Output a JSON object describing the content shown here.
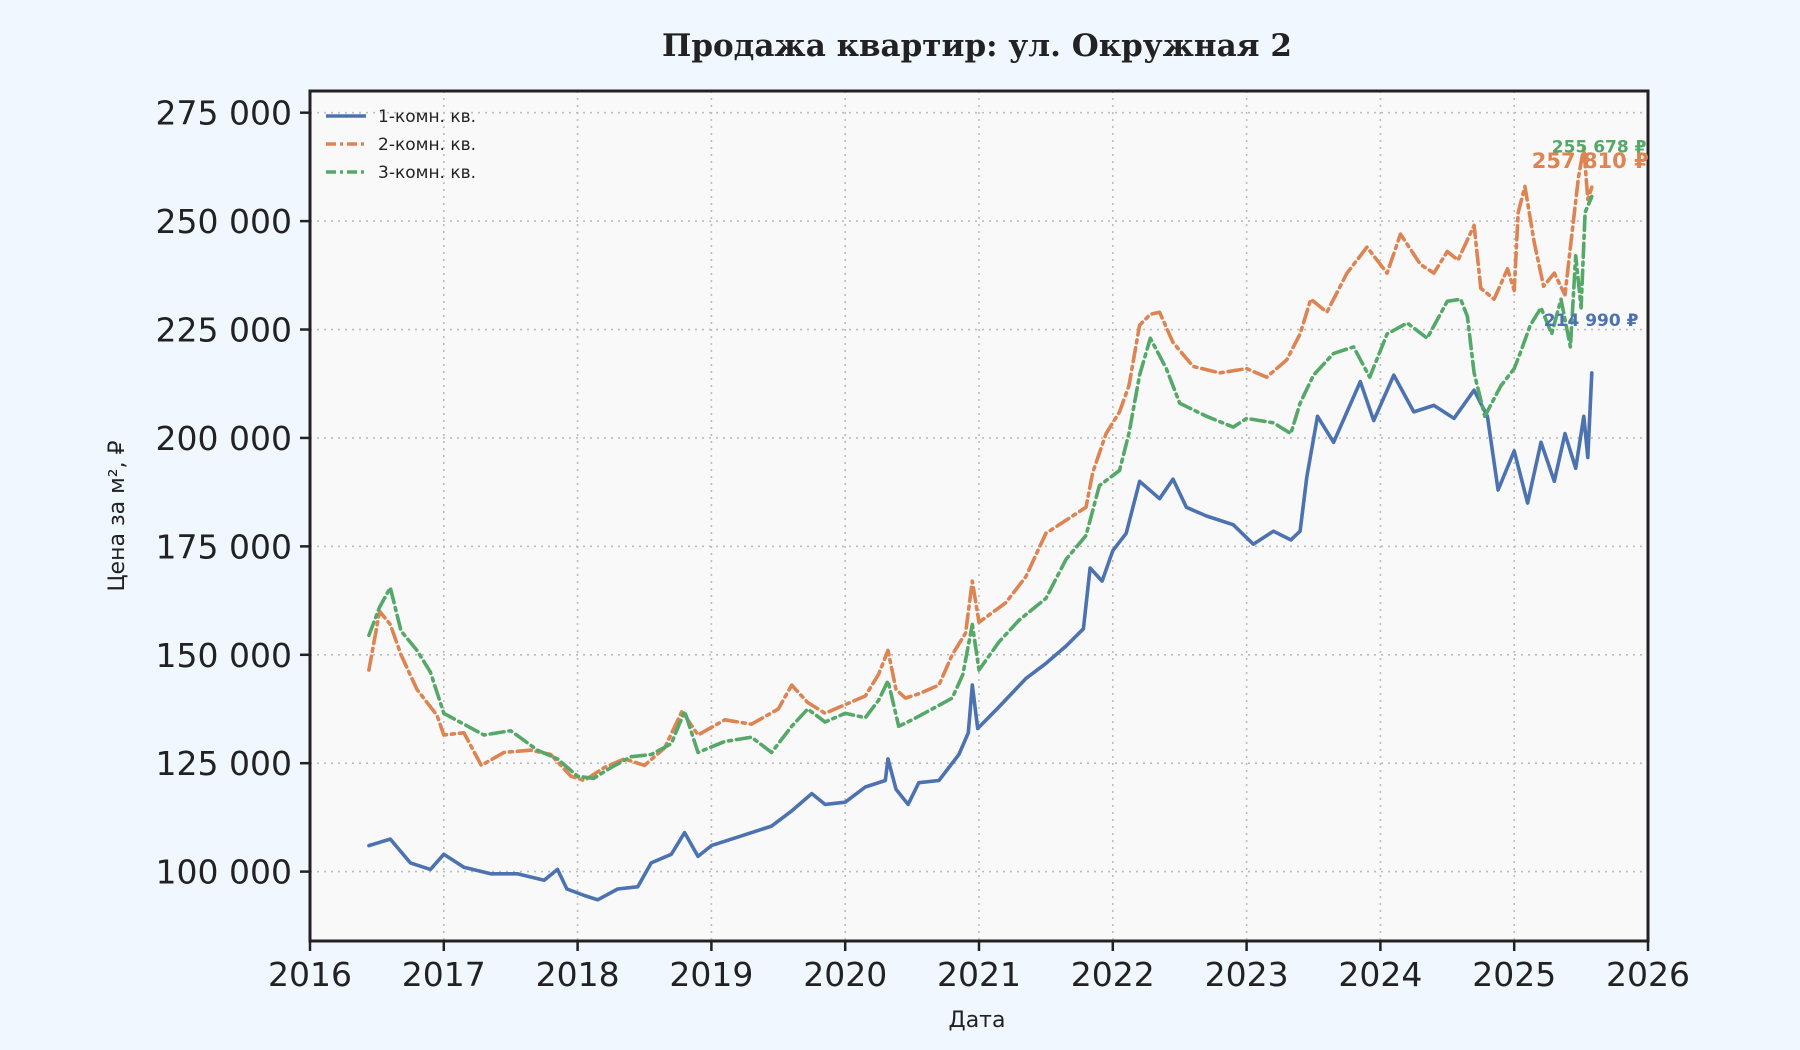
{
  "chart_data": {
    "type": "line",
    "title": "Продажа квартир: ул. Окружная 2",
    "xlabel": "Дата",
    "ylabel": "Цена за м², ₽",
    "xlim": [
      2016,
      2026
    ],
    "ylim": [
      84000,
      280000
    ],
    "x_ticks": [
      2016,
      2017,
      2018,
      2019,
      2020,
      2021,
      2022,
      2023,
      2024,
      2025,
      2026
    ],
    "y_ticks": [
      100000,
      125000,
      150000,
      175000,
      200000,
      225000,
      250000,
      275000
    ],
    "y_tick_labels": [
      "100 000",
      "125 000",
      "150 000",
      "175 000",
      "200 000",
      "225 000",
      "250 000",
      "275 000"
    ],
    "grid": true,
    "legend": "top-left",
    "series": [
      {
        "name": "1-комн. кв.",
        "color": "#4c72b0",
        "style": "solid",
        "end_label": "214 990 ₽",
        "points": [
          [
            2016.44,
            106000
          ],
          [
            2016.6,
            107500
          ],
          [
            2016.75,
            102000
          ],
          [
            2016.9,
            100500
          ],
          [
            2017.0,
            104000
          ],
          [
            2017.15,
            101000
          ],
          [
            2017.35,
            99500
          ],
          [
            2017.55,
            99500
          ],
          [
            2017.75,
            98000
          ],
          [
            2017.85,
            100500
          ],
          [
            2017.92,
            96000
          ],
          [
            2018.05,
            94500
          ],
          [
            2018.15,
            93500
          ],
          [
            2018.3,
            96000
          ],
          [
            2018.45,
            96500
          ],
          [
            2018.55,
            102000
          ],
          [
            2018.7,
            104000
          ],
          [
            2018.8,
            109000
          ],
          [
            2018.9,
            103500
          ],
          [
            2019.0,
            106000
          ],
          [
            2019.2,
            108000
          ],
          [
            2019.45,
            110500
          ],
          [
            2019.6,
            114000
          ],
          [
            2019.75,
            118000
          ],
          [
            2019.85,
            115500
          ],
          [
            2020.0,
            116000
          ],
          [
            2020.15,
            119500
          ],
          [
            2020.3,
            121000
          ],
          [
            2020.32,
            126000
          ],
          [
            2020.38,
            119000
          ],
          [
            2020.47,
            115500
          ],
          [
            2020.55,
            120500
          ],
          [
            2020.7,
            121000
          ],
          [
            2020.85,
            127000
          ],
          [
            2020.92,
            132000
          ],
          [
            2020.95,
            143000
          ],
          [
            2020.99,
            133000
          ],
          [
            2021.15,
            138000
          ],
          [
            2021.35,
            144500
          ],
          [
            2021.5,
            148000
          ],
          [
            2021.65,
            152000
          ],
          [
            2021.78,
            156000
          ],
          [
            2021.83,
            170000
          ],
          [
            2021.92,
            167000
          ],
          [
            2022.0,
            174000
          ],
          [
            2022.1,
            178000
          ],
          [
            2022.2,
            190000
          ],
          [
            2022.35,
            186000
          ],
          [
            2022.45,
            190500
          ],
          [
            2022.55,
            184000
          ],
          [
            2022.7,
            182000
          ],
          [
            2022.9,
            180000
          ],
          [
            2023.05,
            175500
          ],
          [
            2023.2,
            178500
          ],
          [
            2023.33,
            176500
          ],
          [
            2023.4,
            178500
          ],
          [
            2023.45,
            191000
          ],
          [
            2023.53,
            205000
          ],
          [
            2023.65,
            199000
          ],
          [
            2023.75,
            206000
          ],
          [
            2023.85,
            213000
          ],
          [
            2023.95,
            204000
          ],
          [
            2024.1,
            214500
          ],
          [
            2024.25,
            206000
          ],
          [
            2024.4,
            207500
          ],
          [
            2024.55,
            204500
          ],
          [
            2024.7,
            211000
          ],
          [
            2024.8,
            205000
          ],
          [
            2024.88,
            188000
          ],
          [
            2025.0,
            197000
          ],
          [
            2025.1,
            185000
          ],
          [
            2025.2,
            199000
          ],
          [
            2025.3,
            190000
          ],
          [
            2025.38,
            201000
          ],
          [
            2025.46,
            193000
          ],
          [
            2025.52,
            205000
          ],
          [
            2025.55,
            195500
          ],
          [
            2025.58,
            214990
          ]
        ]
      },
      {
        "name": "2-комн. кв.",
        "color": "#dd8452",
        "style": "dashdot",
        "end_label": "257 810 ₽",
        "points": [
          [
            2016.44,
            146500
          ],
          [
            2016.52,
            160000
          ],
          [
            2016.6,
            157000
          ],
          [
            2016.68,
            150000
          ],
          [
            2016.8,
            142000
          ],
          [
            2016.95,
            136000
          ],
          [
            2017.0,
            131500
          ],
          [
            2017.15,
            132000
          ],
          [
            2017.28,
            124500
          ],
          [
            2017.45,
            127500
          ],
          [
            2017.65,
            128000
          ],
          [
            2017.8,
            127000
          ],
          [
            2017.95,
            122000
          ],
          [
            2018.05,
            121000
          ],
          [
            2018.2,
            124000
          ],
          [
            2018.35,
            126000
          ],
          [
            2018.5,
            124500
          ],
          [
            2018.65,
            128500
          ],
          [
            2018.78,
            137000
          ],
          [
            2018.9,
            131500
          ],
          [
            2019.1,
            135000
          ],
          [
            2019.3,
            134000
          ],
          [
            2019.5,
            137500
          ],
          [
            2019.6,
            143000
          ],
          [
            2019.72,
            139000
          ],
          [
            2019.85,
            136500
          ],
          [
            2020.0,
            138500
          ],
          [
            2020.15,
            140500
          ],
          [
            2020.25,
            145500
          ],
          [
            2020.32,
            151000
          ],
          [
            2020.38,
            142000
          ],
          [
            2020.45,
            140000
          ],
          [
            2020.55,
            141000
          ],
          [
            2020.7,
            143000
          ],
          [
            2020.8,
            150000
          ],
          [
            2020.9,
            155000
          ],
          [
            2020.95,
            167000
          ],
          [
            2021.0,
            157500
          ],
          [
            2021.2,
            162000
          ],
          [
            2021.35,
            168000
          ],
          [
            2021.5,
            178000
          ],
          [
            2021.65,
            181000
          ],
          [
            2021.8,
            184000
          ],
          [
            2021.85,
            192000
          ],
          [
            2021.95,
            201000
          ],
          [
            2022.05,
            206000
          ],
          [
            2022.12,
            212000
          ],
          [
            2022.2,
            226000
          ],
          [
            2022.28,
            228500
          ],
          [
            2022.35,
            229000
          ],
          [
            2022.45,
            222000
          ],
          [
            2022.6,
            216500
          ],
          [
            2022.8,
            215000
          ],
          [
            2023.0,
            216000
          ],
          [
            2023.15,
            214000
          ],
          [
            2023.3,
            218000
          ],
          [
            2023.4,
            224000
          ],
          [
            2023.48,
            232000
          ],
          [
            2023.6,
            229000
          ],
          [
            2023.75,
            238000
          ],
          [
            2023.9,
            244000
          ],
          [
            2024.05,
            238000
          ],
          [
            2024.15,
            247000
          ],
          [
            2024.3,
            240000
          ],
          [
            2024.4,
            238000
          ],
          [
            2024.5,
            243000
          ],
          [
            2024.58,
            241000
          ],
          [
            2024.7,
            249000
          ],
          [
            2024.75,
            234500
          ],
          [
            2024.85,
            232000
          ],
          [
            2024.95,
            239000
          ],
          [
            2025.0,
            234000
          ],
          [
            2025.03,
            252000
          ],
          [
            2025.08,
            258000
          ],
          [
            2025.15,
            245000
          ],
          [
            2025.22,
            235000
          ],
          [
            2025.3,
            238000
          ],
          [
            2025.38,
            233000
          ],
          [
            2025.42,
            244000
          ],
          [
            2025.48,
            260000
          ],
          [
            2025.52,
            267000
          ],
          [
            2025.55,
            255000
          ],
          [
            2025.58,
            257810
          ]
        ]
      },
      {
        "name": "3-комн. кв.",
        "color": "#55a868",
        "style": "dashdot",
        "end_label": "255 678 ₽",
        "points": [
          [
            2016.44,
            154500
          ],
          [
            2016.52,
            161000
          ],
          [
            2016.6,
            165500
          ],
          [
            2016.68,
            155500
          ],
          [
            2016.8,
            151000
          ],
          [
            2016.9,
            146000
          ],
          [
            2017.0,
            136500
          ],
          [
            2017.15,
            134000
          ],
          [
            2017.3,
            131500
          ],
          [
            2017.5,
            132500
          ],
          [
            2017.7,
            128000
          ],
          [
            2017.85,
            126000
          ],
          [
            2018.0,
            122000
          ],
          [
            2018.12,
            121500
          ],
          [
            2018.25,
            124000
          ],
          [
            2018.4,
            126500
          ],
          [
            2018.55,
            127000
          ],
          [
            2018.7,
            129500
          ],
          [
            2018.8,
            137000
          ],
          [
            2018.9,
            127500
          ],
          [
            2019.1,
            130000
          ],
          [
            2019.3,
            131000
          ],
          [
            2019.45,
            127500
          ],
          [
            2019.6,
            133500
          ],
          [
            2019.72,
            137500
          ],
          [
            2019.85,
            134500
          ],
          [
            2020.0,
            136500
          ],
          [
            2020.15,
            135500
          ],
          [
            2020.25,
            139500
          ],
          [
            2020.32,
            144000
          ],
          [
            2020.4,
            133500
          ],
          [
            2020.5,
            135000
          ],
          [
            2020.65,
            137500
          ],
          [
            2020.8,
            140000
          ],
          [
            2020.88,
            145500
          ],
          [
            2020.95,
            157000
          ],
          [
            2021.0,
            146500
          ],
          [
            2021.15,
            153000
          ],
          [
            2021.3,
            158000
          ],
          [
            2021.5,
            163000
          ],
          [
            2021.65,
            172000
          ],
          [
            2021.8,
            177500
          ],
          [
            2021.9,
            189000
          ],
          [
            2022.05,
            192500
          ],
          [
            2022.12,
            201000
          ],
          [
            2022.2,
            214500
          ],
          [
            2022.28,
            223000
          ],
          [
            2022.4,
            216000
          ],
          [
            2022.5,
            208000
          ],
          [
            2022.7,
            205000
          ],
          [
            2022.9,
            202500
          ],
          [
            2023.0,
            204500
          ],
          [
            2023.2,
            203500
          ],
          [
            2023.33,
            201000
          ],
          [
            2023.4,
            208000
          ],
          [
            2023.5,
            214500
          ],
          [
            2023.65,
            219500
          ],
          [
            2023.8,
            221000
          ],
          [
            2023.92,
            214000
          ],
          [
            2024.05,
            224000
          ],
          [
            2024.2,
            226500
          ],
          [
            2024.35,
            223000
          ],
          [
            2024.5,
            231500
          ],
          [
            2024.6,
            232000
          ],
          [
            2024.65,
            228000
          ],
          [
            2024.7,
            215000
          ],
          [
            2024.78,
            205000
          ],
          [
            2024.9,
            212000
          ],
          [
            2025.0,
            216000
          ],
          [
            2025.05,
            220000
          ],
          [
            2025.12,
            226000
          ],
          [
            2025.2,
            230000
          ],
          [
            2025.28,
            224000
          ],
          [
            2025.35,
            232000
          ],
          [
            2025.42,
            221000
          ],
          [
            2025.46,
            242000
          ],
          [
            2025.5,
            230000
          ],
          [
            2025.53,
            252000
          ],
          [
            2025.58,
            255678
          ]
        ]
      }
    ]
  }
}
